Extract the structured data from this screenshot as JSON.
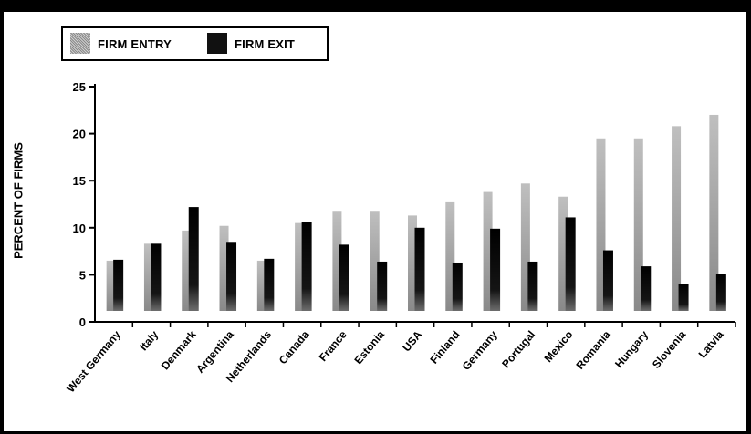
{
  "chart_data": {
    "type": "bar",
    "ylabel": "PERCENT OF FIRMS",
    "xlabel": "",
    "ylim": [
      0,
      25
    ],
    "yticks": [
      "0",
      "5",
      "10",
      "15",
      "20",
      "25"
    ],
    "grid": false,
    "legend_position": "top-left",
    "categories": [
      "West Germany",
      "Italy",
      "Denmark",
      "Argentina",
      "Netherlands",
      "Canada",
      "France",
      "Estonia",
      "USA",
      "Finland",
      "Germany",
      "Portugal",
      "Mexico",
      "Romania",
      "Hungary",
      "Slovenia",
      "Latvia"
    ],
    "series": [
      {
        "name": "FIRM ENTRY",
        "values": [
          6.5,
          8.3,
          9.7,
          10.2,
          6.5,
          10.5,
          11.8,
          11.8,
          11.3,
          12.8,
          13.8,
          14.7,
          13.3,
          19.5,
          19.5,
          20.8,
          22.0
        ]
      },
      {
        "name": "FIRM EXIT",
        "values": [
          6.6,
          8.3,
          12.2,
          8.5,
          6.7,
          10.6,
          8.2,
          6.4,
          10.0,
          6.3,
          9.9,
          6.4,
          11.1,
          7.6,
          5.9,
          4.0,
          5.1
        ]
      }
    ]
  },
  "colors": {
    "entry": "#9a9a9a",
    "exit": "#111111",
    "frame": "#000000",
    "background": "#ffffff"
  }
}
